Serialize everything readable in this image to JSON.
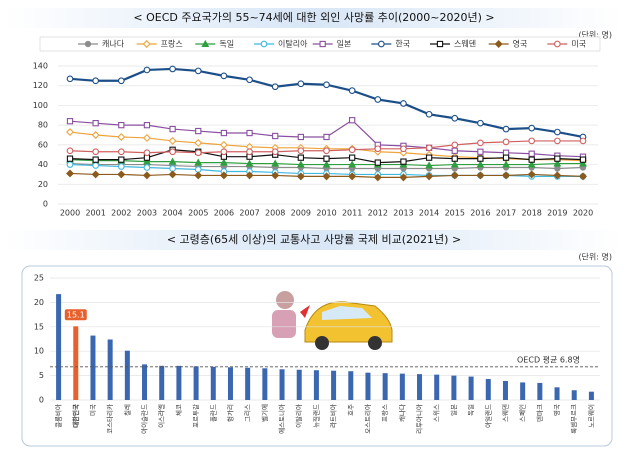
{
  "chart_data": [
    {
      "type": "line",
      "title": "< OECD 주요국가의 55~74세에 대한 외인 사망률 추이(2000~2020년) >",
      "unit": "(단위: 명)",
      "categories": [
        "2000",
        "2001",
        "2002",
        "2003",
        "2004",
        "2005",
        "2006",
        "2007",
        "2008",
        "2009",
        "2010",
        "2011",
        "2012",
        "2013",
        "2014",
        "2015",
        "2016",
        "2017",
        "2018",
        "2019",
        "2020"
      ],
      "ylim": [
        0,
        140
      ],
      "yticks": [
        0,
        20,
        40,
        60,
        80,
        100,
        120,
        140
      ],
      "grid": true,
      "series": [
        {
          "name": "캐나다",
          "color": "#8c8c8c",
          "marker": "dot",
          "values": [
            41,
            40,
            40,
            40,
            39,
            38,
            38,
            38,
            37,
            37,
            36,
            36,
            36,
            36,
            36,
            36,
            37,
            37,
            37,
            36,
            37
          ]
        },
        {
          "name": "프랑스",
          "color": "#eea43a",
          "marker": "diamond-open",
          "values": [
            73,
            70,
            68,
            67,
            64,
            62,
            60,
            58,
            57,
            57,
            56,
            56,
            53,
            52,
            50,
            48,
            47,
            46,
            45,
            45,
            44
          ]
        },
        {
          "name": "독일",
          "color": "#2e9e3e",
          "marker": "triangle",
          "values": [
            45,
            44,
            44,
            43,
            43,
            42,
            42,
            41,
            41,
            40,
            40,
            40,
            40,
            40,
            39,
            40,
            40,
            40,
            40,
            41,
            41
          ]
        },
        {
          "name": "이탈리아",
          "color": "#3fb8e0",
          "marker": "circle-open",
          "values": [
            40,
            39,
            38,
            37,
            36,
            35,
            33,
            33,
            32,
            31,
            31,
            30,
            30,
            30,
            29,
            29,
            29,
            29,
            28,
            28,
            28
          ]
        },
        {
          "name": "일본",
          "color": "#8a4fa0",
          "marker": "square-open",
          "values": [
            84,
            82,
            80,
            80,
            76,
            74,
            72,
            72,
            69,
            68,
            68,
            85,
            60,
            59,
            57,
            54,
            53,
            52,
            51,
            49,
            48
          ]
        },
        {
          "name": "한국",
          "color": "#1c4f8a",
          "marker": "circle-open",
          "values": [
            127,
            125,
            125,
            136,
            137,
            135,
            130,
            126,
            119,
            122,
            121,
            115,
            106,
            102,
            91,
            87,
            82,
            76,
            77,
            73,
            68
          ]
        },
        {
          "name": "스웨덴",
          "color": "#111111",
          "marker": "square-open",
          "values": [
            46,
            45,
            45,
            47,
            55,
            53,
            48,
            48,
            50,
            47,
            46,
            47,
            42,
            43,
            47,
            46,
            46,
            47,
            45,
            46,
            45
          ]
        },
        {
          "name": "영국",
          "color": "#8b5a1c",
          "marker": "diamond",
          "values": [
            31,
            30,
            30,
            29,
            30,
            29,
            29,
            29,
            29,
            28,
            28,
            28,
            27,
            27,
            28,
            29,
            29,
            29,
            30,
            29,
            28
          ]
        },
        {
          "name": "미국",
          "color": "#d06060",
          "marker": "circle-open",
          "values": [
            54,
            53,
            53,
            52,
            53,
            52,
            53,
            53,
            53,
            54,
            54,
            55,
            56,
            56,
            57,
            60,
            62,
            63,
            64,
            64,
            64
          ]
        }
      ]
    },
    {
      "type": "bar",
      "title": "< 고령층(65세 이상)의 교통사고 사망률 국제 비교(2021년) >",
      "unit": "(단위: 명)",
      "categories": [
        "콜롬비아",
        "대한민국",
        "미국",
        "코스타리카",
        "칠레",
        "아이슬란드",
        "이스라엘",
        "체코",
        "포르투갈",
        "폴란드",
        "헝가리",
        "그리스",
        "벨기에",
        "에스토니아",
        "이탈리아",
        "뉴질랜드",
        "라트비아",
        "호주",
        "오스트리아",
        "프랑스",
        "캐나다",
        "리투아니아",
        "스위스",
        "일본",
        "독일",
        "아일랜드",
        "스웨덴",
        "스페인",
        "덴마크",
        "영국",
        "룩셈부르크",
        "노르웨이"
      ],
      "values": [
        21.7,
        15.1,
        13.2,
        12.4,
        10.1,
        7.3,
        7.0,
        7.0,
        6.9,
        6.8,
        6.7,
        6.6,
        6.5,
        6.3,
        6.2,
        6.1,
        6.0,
        5.9,
        5.6,
        5.5,
        5.4,
        5.3,
        5.2,
        5.0,
        4.8,
        4.3,
        3.9,
        3.6,
        3.5,
        2.6,
        2.0,
        1.7
      ],
      "value_labels": [
        null,
        "15.1",
        null,
        null,
        null,
        null,
        null,
        null,
        null,
        null,
        null,
        null,
        null,
        null,
        null,
        null,
        null,
        null,
        null,
        null,
        null,
        null,
        null,
        null,
        null,
        null,
        null,
        null,
        null,
        null,
        null,
        null
      ],
      "colors": [
        "#3a67b0",
        "#e8612c",
        "#3a67b0",
        "#3a67b0",
        "#3a67b0",
        "#3a67b0",
        "#3a67b0",
        "#3a67b0",
        "#3a67b0",
        "#3a67b0",
        "#3a67b0",
        "#3a67b0",
        "#3a67b0",
        "#3a67b0",
        "#3a67b0",
        "#3a67b0",
        "#3a67b0",
        "#3a67b0",
        "#3a67b0",
        "#3a67b0",
        "#3a67b0",
        "#3a67b0",
        "#3a67b0",
        "#3a67b0",
        "#3a67b0",
        "#3a67b0",
        "#3a67b0",
        "#3a67b0",
        "#3a67b0",
        "#3a67b0",
        "#3a67b0",
        "#3a67b0"
      ],
      "ylim": [
        0,
        25
      ],
      "yticks": [
        0,
        5,
        10,
        15,
        20,
        25
      ],
      "grid": true,
      "reference_line": {
        "value": 6.8,
        "label": "OECD 평균 6.8명"
      }
    }
  ]
}
